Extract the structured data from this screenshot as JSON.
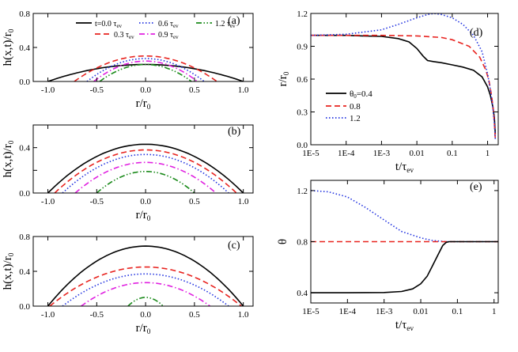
{
  "colors": {
    "black": "#000000",
    "red": "#e8231f",
    "blue": "#2233e0",
    "magenta": "#e020e0",
    "green": "#1a8a1a"
  },
  "chart_data": [
    {
      "panel_label": "(a)",
      "type": "line",
      "ylabel_main": "h(x,t)/r",
      "ylabel_sub": "0",
      "xlabel_main": "r/r",
      "xlabel_sub": "0",
      "xlim": [
        -1.15,
        1.1
      ],
      "ylim": [
        0,
        0.8
      ],
      "xticks": [
        -1.0,
        -0.5,
        0.0,
        0.5,
        1.0
      ],
      "yticks": [
        0.0,
        0.4,
        0.8
      ],
      "xtick_labels": [
        "-1.0",
        "-0.5",
        "0.0",
        "0.5",
        "1.0"
      ],
      "ytick_labels": [
        "0.0",
        "0.4",
        "0.8"
      ],
      "legend": [
        {
          "main": "t=0.0 τ",
          "sub": "ev",
          "color": "#000000",
          "dash": "solid"
        },
        {
          "main": "0.3 τ",
          "sub": "ev",
          "color": "#e8231f",
          "dash": "dash"
        },
        {
          "main": "0.6 τ",
          "sub": "ev",
          "color": "#2233e0",
          "dash": "dot"
        },
        {
          "main": "0.9 τ",
          "sub": "ev",
          "color": "#e020e0",
          "dash": "dashdot"
        },
        {
          "main": "1.2 τ",
          "sub": "ev",
          "color": "#1a8a1a",
          "dash": "dashdotdot"
        }
      ],
      "series": [
        {
          "kind": "cap",
          "R": 1.0,
          "H": 0.2,
          "color": "#000000",
          "dash": "solid"
        },
        {
          "kind": "cap",
          "R": 0.73,
          "H": 0.3,
          "color": "#e8231f",
          "dash": "dash"
        },
        {
          "kind": "cap",
          "R": 0.6,
          "H": 0.27,
          "color": "#2233e0",
          "dash": "dot"
        },
        {
          "kind": "cap",
          "R": 0.53,
          "H": 0.24,
          "color": "#e020e0",
          "dash": "dashdot"
        },
        {
          "kind": "cap",
          "R": 0.47,
          "H": 0.2,
          "color": "#1a8a1a",
          "dash": "dashdotdot"
        }
      ]
    },
    {
      "panel_label": "(b)",
      "type": "line",
      "ylabel_main": "h(x,t)/r",
      "ylabel_sub": "0",
      "xlabel_main": "r/r",
      "xlabel_sub": "0",
      "xlim": [
        -1.15,
        1.1
      ],
      "ylim": [
        0,
        0.6
      ],
      "xticks": [
        -1.0,
        -0.5,
        0.0,
        0.5,
        1.0
      ],
      "yticks": [
        0.0,
        0.2,
        0.4,
        0.6
      ],
      "xtick_labels": [
        "-1.0",
        "-0.5",
        "0.0",
        "0.5",
        "1.0"
      ],
      "ytick_labels": [
        "0.0",
        "",
        "0.4",
        ""
      ],
      "series": [
        {
          "kind": "cap",
          "R": 1.0,
          "H": 0.43,
          "color": "#000000",
          "dash": "solid"
        },
        {
          "kind": "cap",
          "R": 0.93,
          "H": 0.38,
          "color": "#e8231f",
          "dash": "dash"
        },
        {
          "kind": "cap",
          "R": 0.85,
          "H": 0.34,
          "color": "#2233e0",
          "dash": "dot"
        },
        {
          "kind": "cap",
          "R": 0.72,
          "H": 0.27,
          "color": "#e020e0",
          "dash": "dashdot"
        },
        {
          "kind": "cap",
          "R": 0.5,
          "H": 0.19,
          "color": "#1a8a1a",
          "dash": "dashdotdot"
        }
      ]
    },
    {
      "panel_label": "(c)",
      "type": "line",
      "ylabel_main": "h(x,t)/r",
      "ylabel_sub": "0",
      "xlabel_main": "r/r",
      "xlabel_sub": "0",
      "xlim": [
        -1.15,
        1.1
      ],
      "ylim": [
        0,
        0.8
      ],
      "xticks": [
        -1.0,
        -0.5,
        0.0,
        0.5,
        1.0
      ],
      "yticks": [
        0.0,
        0.4,
        0.8
      ],
      "xtick_labels": [
        "-1.0",
        "-0.5",
        "0.0",
        "0.5",
        "1.0"
      ],
      "ytick_labels": [
        "0.0",
        "0.4",
        "0.8"
      ],
      "series": [
        {
          "kind": "cap",
          "R": 1.0,
          "H": 0.69,
          "color": "#000000",
          "dash": "solid"
        },
        {
          "kind": "cap",
          "R": 0.98,
          "H": 0.45,
          "color": "#e8231f",
          "dash": "dash"
        },
        {
          "kind": "cap",
          "R": 0.85,
          "H": 0.37,
          "color": "#2233e0",
          "dash": "dot"
        },
        {
          "kind": "cap",
          "R": 0.66,
          "H": 0.27,
          "color": "#e020e0",
          "dash": "dashdot"
        },
        {
          "kind": "cap",
          "R": 0.18,
          "H": 0.1,
          "color": "#1a8a1a",
          "dash": "dashdotdot"
        }
      ]
    },
    {
      "panel_label": "(d)",
      "type": "line",
      "xscale": "log",
      "ylabel_main": "r/r",
      "ylabel_sub": "0",
      "xlabel_main": "t/τ",
      "xlabel_sub": "ev",
      "xlim": [
        1e-05,
        2
      ],
      "ylim": [
        0,
        1.2
      ],
      "xticks": [
        1e-05,
        0.0001,
        0.001,
        0.01,
        0.1,
        1
      ],
      "yticks": [
        0.0,
        0.3,
        0.6,
        0.9,
        1.2
      ],
      "xtick_labels": [
        "1E-5",
        "1E-4",
        "1E-3",
        "0.01",
        "0.1",
        "1"
      ],
      "ytick_labels": [
        "0.0",
        "0.3",
        "0.6",
        "0.9",
        "1.2"
      ],
      "legend": [
        {
          "main": "θ",
          "sub": "0",
          "suffix": "=0.4",
          "color": "#000000",
          "dash": "solid"
        },
        {
          "main": "0.8",
          "sub": "",
          "suffix": "",
          "color": "#e8231f",
          "dash": "dash"
        },
        {
          "main": "1.2",
          "sub": "",
          "suffix": "",
          "color": "#2233e0",
          "dash": "dot"
        }
      ],
      "series": [
        {
          "kind": "pts",
          "color": "#000000",
          "dash": "solid",
          "x": [
            1e-05,
            0.0001,
            0.0003,
            0.001,
            0.003,
            0.006,
            0.01,
            0.015,
            0.02,
            0.03,
            0.05,
            0.1,
            0.2,
            0.4,
            0.7,
            1.0,
            1.2,
            1.4,
            1.55,
            1.65
          ],
          "y": [
            1.0,
            1.0,
            0.995,
            0.99,
            0.97,
            0.94,
            0.88,
            0.81,
            0.77,
            0.76,
            0.75,
            0.73,
            0.71,
            0.68,
            0.62,
            0.53,
            0.45,
            0.35,
            0.25,
            0.1
          ]
        },
        {
          "kind": "pts",
          "color": "#e8231f",
          "dash": "dash",
          "x": [
            1e-05,
            0.001,
            0.01,
            0.05,
            0.1,
            0.3,
            0.6,
            0.9,
            1.1,
            1.3,
            1.45,
            1.55,
            1.65
          ],
          "y": [
            1.0,
            1.0,
            0.995,
            0.98,
            0.96,
            0.9,
            0.8,
            0.68,
            0.58,
            0.45,
            0.32,
            0.2,
            0.05
          ]
        },
        {
          "kind": "pts",
          "color": "#2233e0",
          "dash": "dot",
          "x": [
            1e-05,
            0.0001,
            0.001,
            0.003,
            0.01,
            0.02,
            0.03,
            0.05,
            0.1,
            0.2,
            0.4,
            0.7,
            1.0,
            1.2,
            1.4,
            1.55,
            1.65
          ],
          "y": [
            1.0,
            1.01,
            1.05,
            1.1,
            1.16,
            1.19,
            1.2,
            1.19,
            1.16,
            1.1,
            1.0,
            0.85,
            0.65,
            0.5,
            0.35,
            0.2,
            0.05
          ]
        }
      ]
    },
    {
      "panel_label": "(e)",
      "type": "line",
      "xscale": "log",
      "ylabel_main": "θ",
      "ylabel_sub": "",
      "xlabel_main": "t/τ",
      "xlabel_sub": "ev",
      "xlim": [
        1e-05,
        1.3
      ],
      "ylim": [
        0.32,
        1.28
      ],
      "xticks": [
        1e-05,
        0.0001,
        0.001,
        0.01,
        0.1,
        1
      ],
      "yticks": [
        0.4,
        0.8,
        1.2
      ],
      "xtick_labels": [
        "1E-5",
        "1E-4",
        "1E-3",
        "0.01",
        "0.1",
        "1"
      ],
      "ytick_labels": [
        "0.4",
        "0.8",
        "1.2"
      ],
      "series": [
        {
          "kind": "pts",
          "color": "#2233e0",
          "dash": "dot",
          "x": [
            1e-05,
            3e-05,
            0.0001,
            0.0003,
            0.001,
            0.003,
            0.01,
            0.02,
            0.03,
            0.05,
            0.1,
            0.3,
            1.3
          ],
          "y": [
            1.2,
            1.19,
            1.15,
            1.07,
            0.97,
            0.88,
            0.83,
            0.81,
            0.805,
            0.8,
            0.8,
            0.8,
            0.8
          ]
        },
        {
          "kind": "pts",
          "color": "#e8231f",
          "dash": "dash",
          "x": [
            1e-05,
            1.3
          ],
          "y": [
            0.8,
            0.8
          ]
        },
        {
          "kind": "pts",
          "color": "#000000",
          "dash": "solid",
          "x": [
            1e-05,
            0.0001,
            0.001,
            0.003,
            0.006,
            0.01,
            0.015,
            0.02,
            0.03,
            0.04,
            0.05,
            0.06,
            0.08,
            0.1,
            1.3
          ],
          "y": [
            0.4,
            0.4,
            0.402,
            0.41,
            0.43,
            0.47,
            0.53,
            0.6,
            0.7,
            0.77,
            0.795,
            0.8,
            0.8,
            0.8,
            0.8
          ]
        }
      ]
    }
  ]
}
